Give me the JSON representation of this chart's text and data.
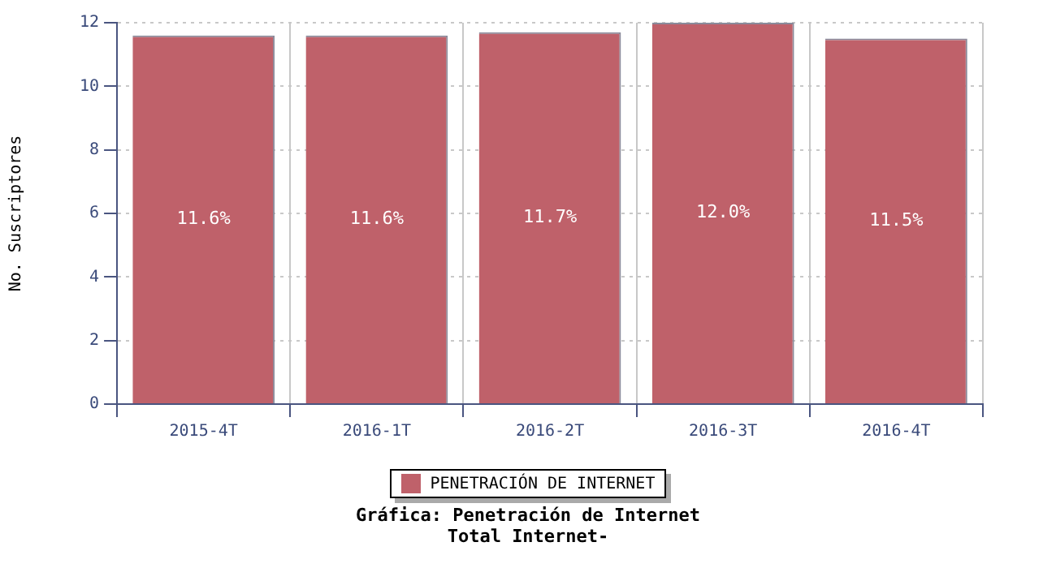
{
  "chart_data": {
    "type": "bar",
    "title": "Gráfica: Penetración de Internet",
    "subtitle": "Total Internet-",
    "ylabel": "No. Suscriptores",
    "categories": [
      "2015-4T",
      "2016-1T",
      "2016-2T",
      "2016-3T",
      "2016-4T"
    ],
    "series": [
      {
        "name": "PENETRACIÓN DE INTERNET",
        "color": "#bf616a",
        "values": [
          11.6,
          11.6,
          11.7,
          12.0,
          11.5
        ],
        "value_labels": [
          "11.6%",
          "11.6%",
          "11.7%",
          "12.0%",
          "11.5%"
        ]
      }
    ],
    "ylim": [
      0,
      12
    ],
    "yticks": [
      0,
      2,
      4,
      6,
      8,
      10,
      12
    ],
    "grid": true,
    "legend": "bottom"
  }
}
